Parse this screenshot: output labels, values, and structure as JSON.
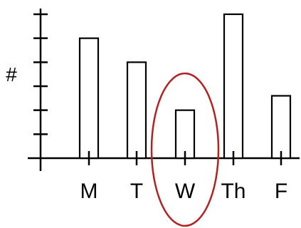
{
  "chart_data": {
    "type": "bar",
    "title": "",
    "xlabel": "",
    "ylabel": "#",
    "categories": [
      "M",
      "T",
      "W",
      "Th",
      "F"
    ],
    "values": [
      5,
      4,
      2,
      6,
      2.6
    ],
    "ylim": [
      0,
      6
    ],
    "y_tick_count": 6,
    "grid": false,
    "highlight": {
      "category": "W",
      "shape": "ellipse",
      "color": "#b22222"
    }
  },
  "colors": {
    "axis": "#000000",
    "bar_fill": "#ffffff",
    "bar_stroke": "#000000",
    "highlight": "#b22222"
  }
}
